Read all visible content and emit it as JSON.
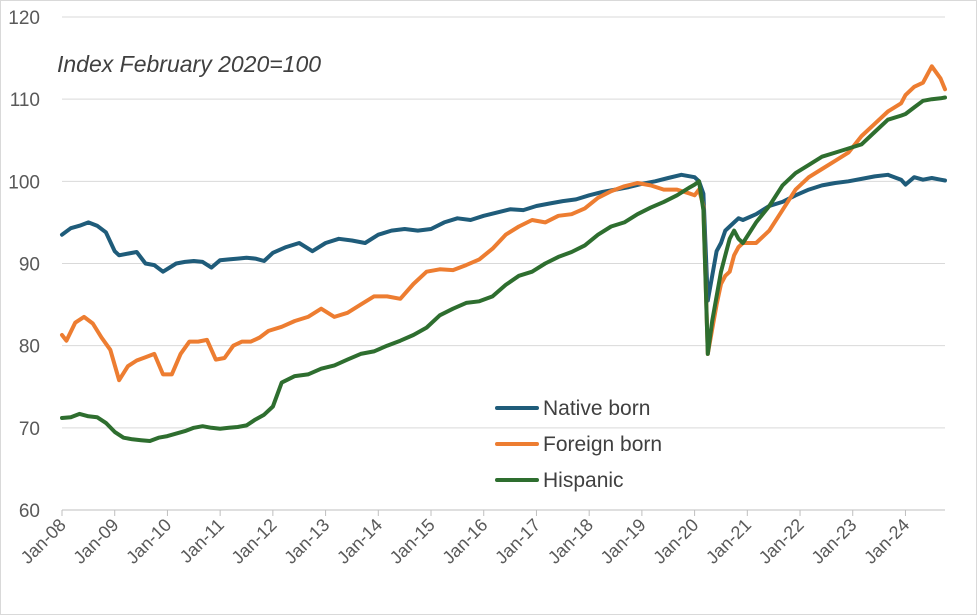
{
  "chart_data": {
    "type": "line",
    "title": "",
    "subtitle": "Index February 2020=100",
    "xlabel": "",
    "ylabel": "",
    "ylim": [
      60,
      120
    ],
    "yticks": [
      "60",
      "70",
      "80",
      "90",
      "100",
      "110",
      "120"
    ],
    "xlim": [
      "2008-01",
      "2024-10"
    ],
    "xticks": [
      "Jan-08",
      "Jan-09",
      "Jan-10",
      "Jan-11",
      "Jan-12",
      "Jan-13",
      "Jan-14",
      "Jan-15",
      "Jan-16",
      "Jan-17",
      "Jan-18",
      "Jan-19",
      "Jan-20",
      "Jan-21",
      "Jan-22",
      "Jan-23",
      "Jan-24"
    ],
    "grid": "horizontal",
    "legend_position": "lower-right",
    "series": [
      {
        "name": "Native born",
        "color": "#1f5c7a",
        "points": [
          [
            "2008-01",
            93.5
          ],
          [
            "2008-03",
            94.3
          ],
          [
            "2008-05",
            94.6
          ],
          [
            "2008-07",
            95
          ],
          [
            "2008-09",
            94.6
          ],
          [
            "2008-11",
            93.8
          ],
          [
            "2009-01",
            91.5
          ],
          [
            "2009-02",
            91
          ],
          [
            "2009-04",
            91.2
          ],
          [
            "2009-06",
            91.4
          ],
          [
            "2009-08",
            90
          ],
          [
            "2009-10",
            89.8
          ],
          [
            "2009-12",
            89
          ],
          [
            "2010-03",
            90
          ],
          [
            "2010-05",
            90.2
          ],
          [
            "2010-07",
            90.3
          ],
          [
            "2010-09",
            90.2
          ],
          [
            "2010-11",
            89.5
          ],
          [
            "2011-01",
            90.4
          ],
          [
            "2011-03",
            90.5
          ],
          [
            "2011-05",
            90.6
          ],
          [
            "2011-07",
            90.7
          ],
          [
            "2011-09",
            90.6
          ],
          [
            "2011-11",
            90.3
          ],
          [
            "2012-01",
            91.3
          ],
          [
            "2012-04",
            92
          ],
          [
            "2012-07",
            92.5
          ],
          [
            "2012-10",
            91.5
          ],
          [
            "2013-01",
            92.5
          ],
          [
            "2013-04",
            93
          ],
          [
            "2013-07",
            92.8
          ],
          [
            "2013-10",
            92.5
          ],
          [
            "2014-01",
            93.5
          ],
          [
            "2014-04",
            94
          ],
          [
            "2014-07",
            94.2
          ],
          [
            "2014-10",
            94
          ],
          [
            "2015-01",
            94.2
          ],
          [
            "2015-04",
            95
          ],
          [
            "2015-07",
            95.5
          ],
          [
            "2015-10",
            95.3
          ],
          [
            "2016-01",
            95.8
          ],
          [
            "2016-04",
            96.2
          ],
          [
            "2016-07",
            96.6
          ],
          [
            "2016-10",
            96.5
          ],
          [
            "2017-01",
            97
          ],
          [
            "2017-04",
            97.3
          ],
          [
            "2017-07",
            97.6
          ],
          [
            "2017-10",
            97.8
          ],
          [
            "2018-01",
            98.3
          ],
          [
            "2018-04",
            98.7
          ],
          [
            "2018-07",
            99
          ],
          [
            "2018-10",
            99.3
          ],
          [
            "2019-01",
            99.7
          ],
          [
            "2019-04",
            100
          ],
          [
            "2019-07",
            100.4
          ],
          [
            "2019-10",
            100.8
          ],
          [
            "2020-01",
            100.5
          ],
          [
            "2020-02",
            100
          ],
          [
            "2020-03",
            98.5
          ],
          [
            "2020-04",
            85.5
          ],
          [
            "2020-05",
            88.5
          ],
          [
            "2020-06",
            91.5
          ],
          [
            "2020-07",
            92.5
          ],
          [
            "2020-08",
            94
          ],
          [
            "2020-09",
            94.5
          ],
          [
            "2020-10",
            95
          ],
          [
            "2020-11",
            95.5
          ],
          [
            "2020-12",
            95.3
          ],
          [
            "2021-03",
            96
          ],
          [
            "2021-06",
            97
          ],
          [
            "2021-09",
            97.5
          ],
          [
            "2021-12",
            98.3
          ],
          [
            "2022-03",
            99
          ],
          [
            "2022-06",
            99.5
          ],
          [
            "2022-09",
            99.8
          ],
          [
            "2022-12",
            100
          ],
          [
            "2023-03",
            100.3
          ],
          [
            "2023-06",
            100.6
          ],
          [
            "2023-09",
            100.8
          ],
          [
            "2023-12",
            100.2
          ],
          [
            "2024-01",
            99.6
          ],
          [
            "2024-03",
            100.5
          ],
          [
            "2024-05",
            100.2
          ],
          [
            "2024-07",
            100.4
          ],
          [
            "2024-09",
            100.2
          ],
          [
            "2024-10",
            100.1
          ]
        ]
      },
      {
        "name": "Foreign born",
        "color": "#ed7d31",
        "points": [
          [
            "2008-01",
            81.3
          ],
          [
            "2008-02",
            80.6
          ],
          [
            "2008-04",
            82.8
          ],
          [
            "2008-06",
            83.5
          ],
          [
            "2008-08",
            82.7
          ],
          [
            "2008-10",
            81
          ],
          [
            "2008-12",
            79.5
          ],
          [
            "2009-02",
            75.8
          ],
          [
            "2009-04",
            77.5
          ],
          [
            "2009-06",
            78.2
          ],
          [
            "2009-08",
            78.6
          ],
          [
            "2009-10",
            79
          ],
          [
            "2009-12",
            76.5
          ],
          [
            "2010-02",
            76.5
          ],
          [
            "2010-04",
            79
          ],
          [
            "2010-06",
            80.5
          ],
          [
            "2010-08",
            80.5
          ],
          [
            "2010-10",
            80.7
          ],
          [
            "2010-12",
            78.3
          ],
          [
            "2011-02",
            78.5
          ],
          [
            "2011-04",
            80
          ],
          [
            "2011-06",
            80.5
          ],
          [
            "2011-08",
            80.5
          ],
          [
            "2011-10",
            81
          ],
          [
            "2011-12",
            81.8
          ],
          [
            "2012-03",
            82.3
          ],
          [
            "2012-06",
            83
          ],
          [
            "2012-09",
            83.5
          ],
          [
            "2012-12",
            84.5
          ],
          [
            "2013-03",
            83.5
          ],
          [
            "2013-06",
            84
          ],
          [
            "2013-09",
            85
          ],
          [
            "2013-12",
            86
          ],
          [
            "2014-03",
            86
          ],
          [
            "2014-06",
            85.7
          ],
          [
            "2014-09",
            87.5
          ],
          [
            "2014-12",
            89
          ],
          [
            "2015-03",
            89.3
          ],
          [
            "2015-06",
            89.2
          ],
          [
            "2015-09",
            89.8
          ],
          [
            "2015-12",
            90.5
          ],
          [
            "2016-03",
            91.8
          ],
          [
            "2016-06",
            93.5
          ],
          [
            "2016-09",
            94.5
          ],
          [
            "2016-12",
            95.3
          ],
          [
            "2017-03",
            95
          ],
          [
            "2017-06",
            95.8
          ],
          [
            "2017-09",
            96
          ],
          [
            "2017-12",
            96.7
          ],
          [
            "2018-03",
            98
          ],
          [
            "2018-06",
            98.8
          ],
          [
            "2018-09",
            99.4
          ],
          [
            "2018-12",
            99.8
          ],
          [
            "2019-03",
            99.5
          ],
          [
            "2019-06",
            99
          ],
          [
            "2019-09",
            99
          ],
          [
            "2019-12",
            98.5
          ],
          [
            "2020-01",
            98.3
          ],
          [
            "2020-02",
            99
          ],
          [
            "2020-03",
            97
          ],
          [
            "2020-04",
            79
          ],
          [
            "2020-05",
            82
          ],
          [
            "2020-06",
            85
          ],
          [
            "2020-07",
            87.5
          ],
          [
            "2020-08",
            88.5
          ],
          [
            "2020-09",
            89
          ],
          [
            "2020-10",
            91
          ],
          [
            "2020-11",
            92
          ],
          [
            "2020-12",
            92.5
          ],
          [
            "2021-03",
            92.5
          ],
          [
            "2021-06",
            94
          ],
          [
            "2021-09",
            96.5
          ],
          [
            "2021-12",
            99
          ],
          [
            "2022-03",
            100.5
          ],
          [
            "2022-06",
            101.5
          ],
          [
            "2022-09",
            102.5
          ],
          [
            "2022-12",
            103.5
          ],
          [
            "2023-03",
            105.5
          ],
          [
            "2023-06",
            107
          ],
          [
            "2023-09",
            108.5
          ],
          [
            "2023-12",
            109.5
          ],
          [
            "2024-01",
            110.5
          ],
          [
            "2024-03",
            111.5
          ],
          [
            "2024-05",
            112
          ],
          [
            "2024-07",
            114
          ],
          [
            "2024-09",
            112.5
          ],
          [
            "2024-10",
            111.2
          ]
        ]
      },
      {
        "name": "Hispanic",
        "color": "#2e6e2f",
        "points": [
          [
            "2008-01",
            71.2
          ],
          [
            "2008-03",
            71.3
          ],
          [
            "2008-05",
            71.7
          ],
          [
            "2008-07",
            71.4
          ],
          [
            "2008-09",
            71.3
          ],
          [
            "2008-11",
            70.6
          ],
          [
            "2009-01",
            69.5
          ],
          [
            "2009-03",
            68.8
          ],
          [
            "2009-05",
            68.6
          ],
          [
            "2009-07",
            68.5
          ],
          [
            "2009-09",
            68.4
          ],
          [
            "2009-11",
            68.8
          ],
          [
            "2010-01",
            69
          ],
          [
            "2010-03",
            69.3
          ],
          [
            "2010-05",
            69.6
          ],
          [
            "2010-07",
            70
          ],
          [
            "2010-09",
            70.2
          ],
          [
            "2010-11",
            70
          ],
          [
            "2011-01",
            69.9
          ],
          [
            "2011-03",
            70
          ],
          [
            "2011-05",
            70.1
          ],
          [
            "2011-07",
            70.3
          ],
          [
            "2011-09",
            71
          ],
          [
            "2011-11",
            71.6
          ],
          [
            "2012-01",
            72.6
          ],
          [
            "2012-03",
            75.5
          ],
          [
            "2012-06",
            76.3
          ],
          [
            "2012-09",
            76.5
          ],
          [
            "2012-12",
            77.2
          ],
          [
            "2013-03",
            77.6
          ],
          [
            "2013-06",
            78.3
          ],
          [
            "2013-09",
            79
          ],
          [
            "2013-12",
            79.3
          ],
          [
            "2014-03",
            80
          ],
          [
            "2014-06",
            80.6
          ],
          [
            "2014-09",
            81.3
          ],
          [
            "2014-12",
            82.2
          ],
          [
            "2015-03",
            83.7
          ],
          [
            "2015-06",
            84.5
          ],
          [
            "2015-09",
            85.2
          ],
          [
            "2015-12",
            85.4
          ],
          [
            "2016-03",
            86
          ],
          [
            "2016-06",
            87.4
          ],
          [
            "2016-09",
            88.5
          ],
          [
            "2016-12",
            89
          ],
          [
            "2017-03",
            90
          ],
          [
            "2017-06",
            90.8
          ],
          [
            "2017-09",
            91.4
          ],
          [
            "2017-12",
            92.2
          ],
          [
            "2018-03",
            93.5
          ],
          [
            "2018-06",
            94.5
          ],
          [
            "2018-09",
            95
          ],
          [
            "2018-12",
            96
          ],
          [
            "2019-03",
            96.8
          ],
          [
            "2019-06",
            97.5
          ],
          [
            "2019-09",
            98.3
          ],
          [
            "2019-12",
            99.3
          ],
          [
            "2020-01",
            99.6
          ],
          [
            "2020-02",
            100
          ],
          [
            "2020-03",
            96.5
          ],
          [
            "2020-04",
            79
          ],
          [
            "2020-05",
            83
          ],
          [
            "2020-06",
            86
          ],
          [
            "2020-07",
            89
          ],
          [
            "2020-08",
            91
          ],
          [
            "2020-09",
            93
          ],
          [
            "2020-10",
            94
          ],
          [
            "2020-11",
            93
          ],
          [
            "2020-12",
            92.5
          ],
          [
            "2021-03",
            95
          ],
          [
            "2021-06",
            97
          ],
          [
            "2021-09",
            99.5
          ],
          [
            "2021-12",
            101
          ],
          [
            "2022-03",
            102
          ],
          [
            "2022-06",
            103
          ],
          [
            "2022-09",
            103.5
          ],
          [
            "2022-12",
            104
          ],
          [
            "2023-03",
            104.5
          ],
          [
            "2023-06",
            106
          ],
          [
            "2023-09",
            107.5
          ],
          [
            "2023-12",
            108
          ],
          [
            "2024-01",
            108.2
          ],
          [
            "2024-03",
            109
          ],
          [
            "2024-05",
            109.8
          ],
          [
            "2024-07",
            110
          ],
          [
            "2024-09",
            110.1
          ],
          [
            "2024-10",
            110.2
          ]
        ]
      }
    ]
  }
}
